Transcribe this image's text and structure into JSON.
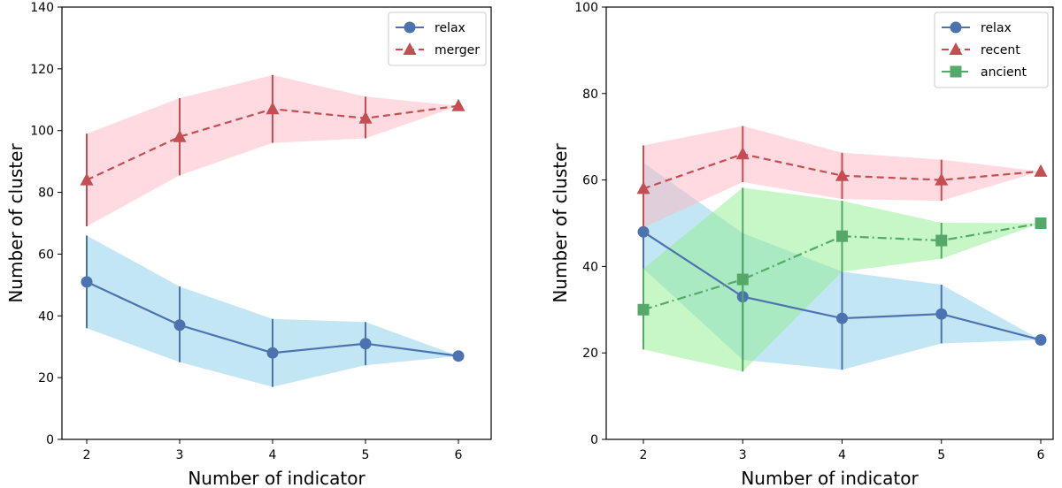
{
  "chart_data": [
    {
      "type": "line",
      "title": "",
      "xlabel": "Number of indicator",
      "ylabel": "Number of cluster",
      "x": [
        2,
        3,
        4,
        5,
        6
      ],
      "xticks": [
        "2",
        "3",
        "4",
        "5",
        "6"
      ],
      "ylim": [
        0,
        140
      ],
      "yticks": [
        "0",
        "20",
        "40",
        "60",
        "80",
        "100",
        "120",
        "140"
      ],
      "legend": "top-right",
      "series": [
        {
          "name": "relax",
          "color": "#4c72b0",
          "band": "#87ceeb",
          "marker": "circle",
          "dash": "",
          "values": [
            51,
            37,
            28,
            31,
            27
          ],
          "lower": [
            36,
            25,
            17,
            24,
            27
          ],
          "upper": [
            66,
            49.5,
            39,
            38,
            27
          ]
        },
        {
          "name": "merger",
          "color": "#c44e52",
          "band": "#ffb6c1",
          "marker": "triangle",
          "dash": "8,5",
          "values": [
            84,
            98,
            107,
            104,
            108
          ],
          "lower": [
            69,
            85.5,
            96,
            97.5,
            108
          ],
          "upper": [
            99,
            110.5,
            118,
            111,
            108
          ]
        }
      ]
    },
    {
      "type": "line",
      "title": "",
      "xlabel": "Number of indicator",
      "ylabel": "Number of cluster",
      "x": [
        2,
        3,
        4,
        5,
        6
      ],
      "xticks": [
        "2",
        "3",
        "4",
        "5",
        "6"
      ],
      "ylim": [
        0,
        100
      ],
      "yticks": [
        "0",
        "20",
        "40",
        "60",
        "80",
        "100"
      ],
      "legend": "top-right",
      "series": [
        {
          "name": "relax",
          "color": "#4c72b0",
          "band": "#87ceeb",
          "marker": "circle",
          "dash": "",
          "values": [
            48,
            33,
            28,
            29,
            23
          ],
          "lower": [
            39.5,
            18.4,
            16.1,
            22.2,
            23
          ],
          "upper": [
            64,
            47.7,
            38.8,
            35.8,
            23
          ]
        },
        {
          "name": "recent",
          "color": "#c44e52",
          "band": "#ffb6c1",
          "marker": "triangle",
          "dash": "8,5",
          "values": [
            58,
            66,
            61,
            60,
            62
          ],
          "lower": [
            49,
            59.5,
            55.6,
            55.2,
            62
          ],
          "upper": [
            68,
            72.5,
            66.3,
            64.7,
            62
          ]
        },
        {
          "name": "ancient",
          "color": "#55a868",
          "band": "#90ee90",
          "marker": "square",
          "dash": "10,4,2,4",
          "values": [
            30,
            37,
            47,
            46,
            50
          ],
          "lower": [
            20.8,
            15.7,
            38.8,
            41.8,
            50
          ],
          "upper": [
            39.5,
            58.2,
            55.2,
            50.1,
            50
          ]
        }
      ]
    }
  ]
}
